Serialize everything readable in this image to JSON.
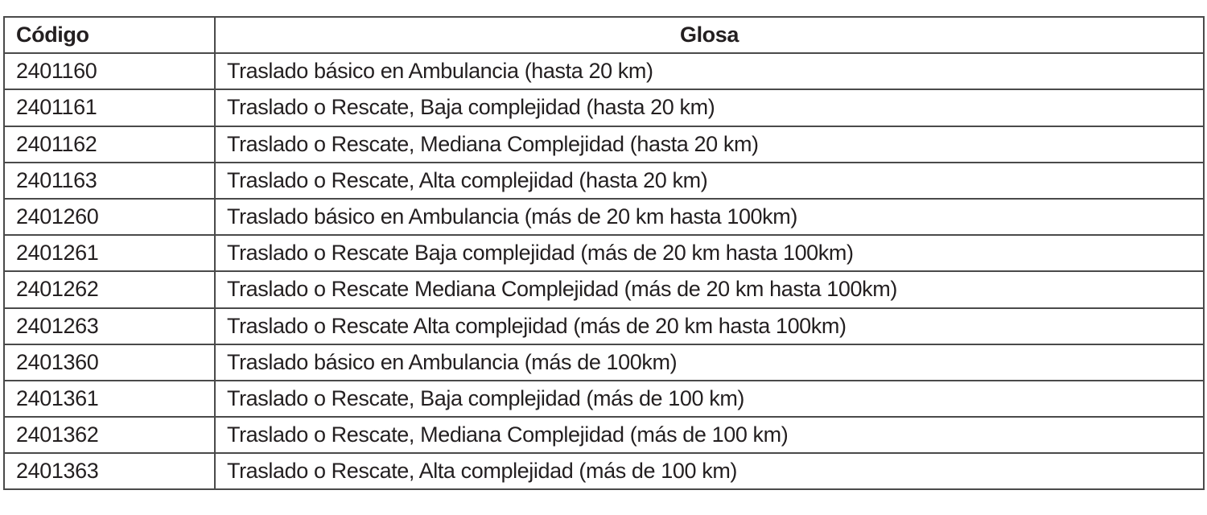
{
  "table": {
    "headers": [
      "Código",
      "Glosa"
    ],
    "rows": [
      [
        "2401160",
        "Traslado básico en Ambulancia (hasta 20 km)"
      ],
      [
        "2401161",
        "Traslado o Rescate, Baja complejidad (hasta 20 km)"
      ],
      [
        "2401162",
        "Traslado o Rescate, Mediana Complejidad (hasta 20 km)"
      ],
      [
        "2401163",
        "Traslado o Rescate, Alta complejidad (hasta 20 km)"
      ],
      [
        "2401260",
        "Traslado básico en Ambulancia (más de 20 km hasta 100km)"
      ],
      [
        "2401261",
        "Traslado o Rescate Baja complejidad (más de 20 km hasta 100km)"
      ],
      [
        "2401262",
        "Traslado o Rescate Mediana Complejidad (más de 20 km hasta 100km)"
      ],
      [
        "2401263",
        "Traslado o Rescate Alta complejidad (más de 20 km hasta 100km)"
      ],
      [
        "2401360",
        "Traslado básico en Ambulancia (más de 100km)"
      ],
      [
        "2401361",
        "Traslado o Rescate, Baja complejidad (más de 100 km)"
      ],
      [
        "2401362",
        "Traslado o Rescate, Mediana Complejidad (más de 100 km)"
      ],
      [
        "2401363",
        "Traslado o Rescate, Alta complejidad (más de 100 km)"
      ]
    ]
  }
}
